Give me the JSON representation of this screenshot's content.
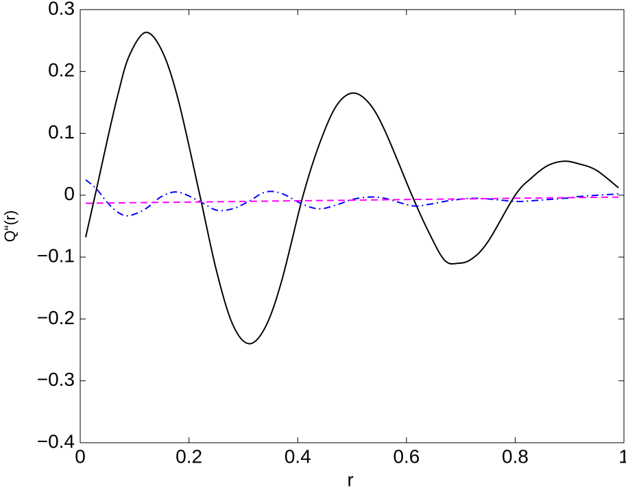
{
  "chart_data": {
    "type": "line",
    "xlabel": "r",
    "ylabel": "Q“(r)",
    "x": [
      0.01,
      0.03,
      0.05,
      0.07,
      0.09,
      0.12,
      0.15,
      0.18,
      0.22,
      0.25,
      0.28,
      0.31,
      0.34,
      0.37,
      0.41,
      0.44,
      0.47,
      0.5,
      0.53,
      0.56,
      0.61,
      0.64,
      0.67,
      0.695,
      0.72,
      0.75,
      0.8,
      0.83,
      0.86,
      0.89,
      0.92,
      0.95,
      0.99
    ],
    "series": [
      {
        "color": "#000000",
        "dash": "solid",
        "values": [
          -0.068,
          0.01,
          0.09,
          0.165,
          0.225,
          0.263,
          0.234,
          0.155,
          0.0,
          -0.12,
          -0.208,
          -0.24,
          -0.214,
          -0.14,
          0.0,
          0.083,
          0.143,
          0.165,
          0.15,
          0.105,
          0.0,
          -0.058,
          -0.105,
          -0.11,
          -0.103,
          -0.075,
          0.0,
          0.028,
          0.048,
          0.055,
          0.05,
          0.04,
          0.012
        ]
      },
      {
        "color": "#0000ff",
        "dash": "dashdot",
        "values": [
          0.025,
          0.01,
          -0.012,
          -0.028,
          -0.033,
          -0.022,
          -0.002,
          0.005,
          -0.01,
          -0.024,
          -0.022,
          -0.01,
          0.005,
          0.003,
          -0.015,
          -0.022,
          -0.016,
          -0.007,
          -0.003,
          -0.005,
          -0.017,
          -0.015,
          -0.01,
          -0.007,
          -0.005,
          -0.006,
          -0.01,
          -0.009,
          -0.007,
          -0.005,
          -0.002,
          0.0,
          0.002
        ]
      },
      {
        "color": "#ff00ff",
        "dash": "dashed",
        "values": [
          -0.013,
          -0.0128,
          -0.0126,
          -0.0124,
          -0.0122,
          -0.0119,
          -0.0116,
          -0.0113,
          -0.0109,
          -0.0106,
          -0.0102,
          -0.0099,
          -0.0096,
          -0.0093,
          -0.0089,
          -0.0086,
          -0.0083,
          -0.008,
          -0.0077,
          -0.0074,
          -0.0069,
          -0.0066,
          -0.0063,
          -0.006,
          -0.0058,
          -0.0055,
          -0.0049,
          -0.0046,
          -0.0043,
          -0.004,
          -0.0037,
          -0.0034,
          -0.003
        ]
      }
    ],
    "xlim": [
      0,
      1
    ],
    "xticks": [
      0,
      0.2,
      0.4,
      0.6,
      0.8,
      1
    ],
    "ylim": [
      -0.4,
      0.3
    ],
    "yticks": [
      {
        "value": -0.4,
        "label": "−0.4"
      },
      {
        "value": -0.3,
        "label": "−0.3"
      },
      {
        "value": -0.2,
        "label": "−0.2"
      },
      {
        "value": -0.1,
        "label": "−0.1"
      },
      0,
      0.1,
      0.2,
      0.3
    ],
    "grid": false
  }
}
